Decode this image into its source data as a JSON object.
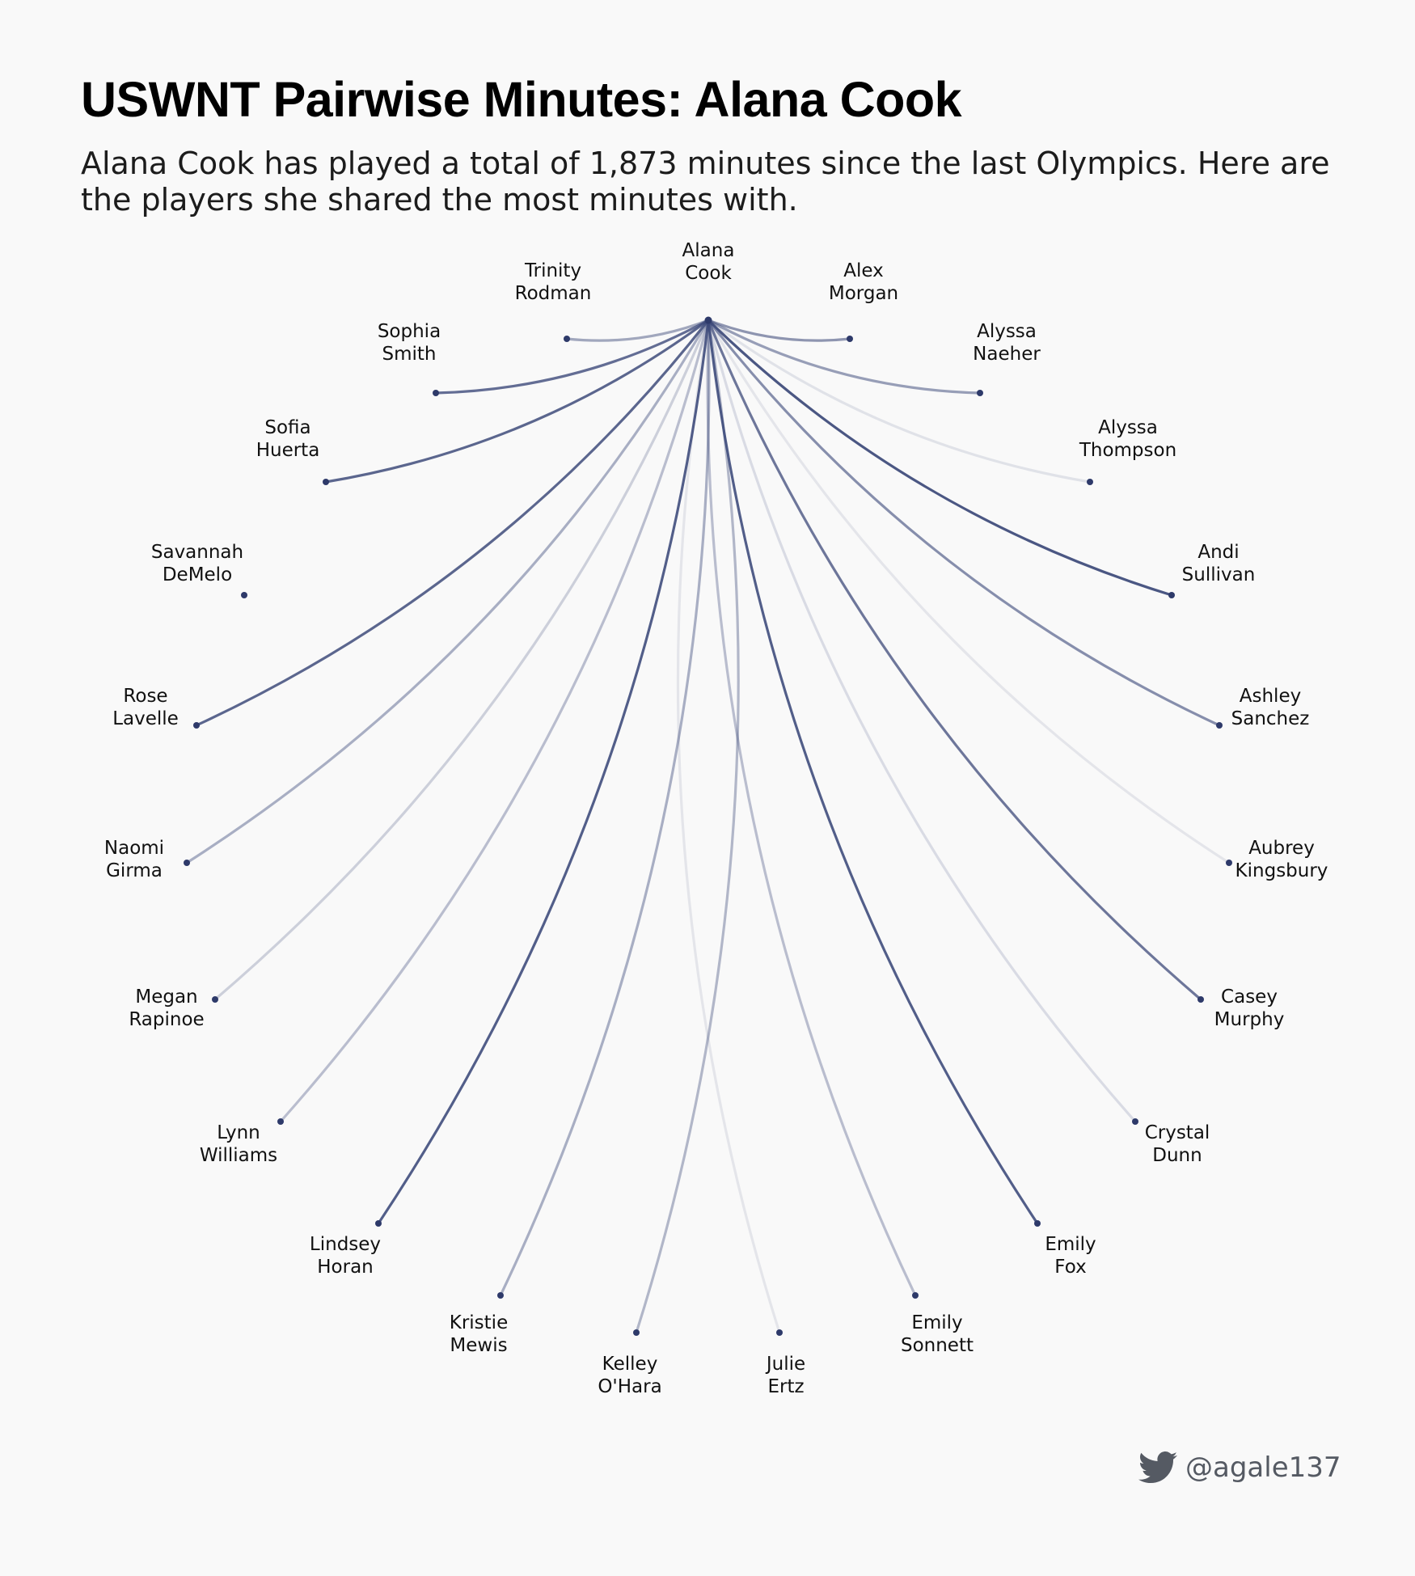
{
  "title": "USWNT Pairwise Minutes: Alana Cook",
  "subtitle": "Alana Cook has played a total of 1,873 minutes since the last Olympics. Here are the players she shared the most minutes with.",
  "credit": {
    "icon": "twitter-bird-icon",
    "handle": "@agale137"
  },
  "colors": {
    "edge": "#3d4a7a",
    "node": "#2e3a6a",
    "background": "#f9f9f9"
  },
  "center_player": {
    "first": "Alana",
    "last": "Cook"
  },
  "players": [
    {
      "first": "Trinity",
      "last": "Rodman",
      "strength": 0.45
    },
    {
      "first": "Alex",
      "last": "Morgan",
      "strength": 0.55
    },
    {
      "first": "Sophia",
      "last": "Smith",
      "strength": 0.8
    },
    {
      "first": "Alyssa",
      "last": "Naeher",
      "strength": 0.5
    },
    {
      "first": "Sofia",
      "last": "Huerta",
      "strength": 0.85
    },
    {
      "first": "Alyssa",
      "last": "Thompson",
      "strength": 0.08
    },
    {
      "first": "Savannah",
      "last": "DeMelo",
      "strength": 0
    },
    {
      "first": "Andi",
      "last": "Sullivan",
      "strength": 0.95
    },
    {
      "first": "Rose",
      "last": "Lavelle",
      "strength": 0.85
    },
    {
      "first": "Ashley",
      "last": "Sanchez",
      "strength": 0.6
    },
    {
      "first": "Naomi",
      "last": "Girma",
      "strength": 0.4
    },
    {
      "first": "Aubrey",
      "last": "Kingsbury",
      "strength": 0.05
    },
    {
      "first": "Megan",
      "last": "Rapinoe",
      "strength": 0.2
    },
    {
      "first": "Casey",
      "last": "Murphy",
      "strength": 0.75
    },
    {
      "first": "Lynn",
      "last": "Williams",
      "strength": 0.3
    },
    {
      "first": "Crystal",
      "last": "Dunn",
      "strength": 0.12
    },
    {
      "first": "Lindsey",
      "last": "Horan",
      "strength": 0.9
    },
    {
      "first": "Emily",
      "last": "Fox",
      "strength": 0.9
    },
    {
      "first": "Kristie",
      "last": "Mewis",
      "strength": 0.4
    },
    {
      "first": "Emily",
      "last": "Sonnett",
      "strength": 0.3
    },
    {
      "first": "Kelley",
      "last": "O'Hara",
      "strength": 0.35
    },
    {
      "first": "Julie",
      "last": "Ertz",
      "strength": 0.05
    }
  ]
}
